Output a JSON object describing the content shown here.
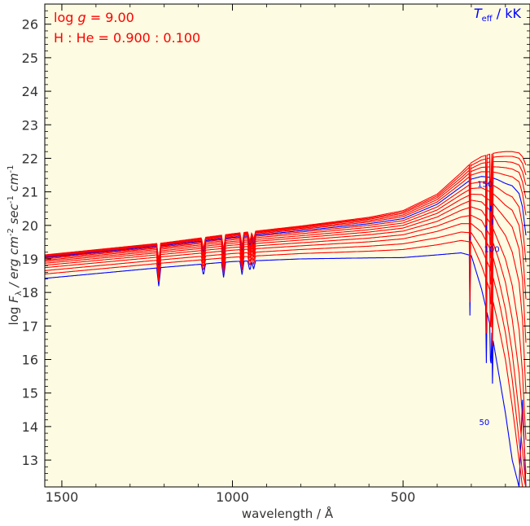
{
  "chart_data": {
    "type": "line",
    "title": "",
    "xlabel": "wavelength / Å",
    "ylabel": {
      "prefix": "log ",
      "symbol": "F",
      "subscript": "λ",
      "units": " / erg cm",
      "exp1": "-2",
      "sec": " sec",
      "exp2": "-1",
      "cm": " cm",
      "exp3": "-1"
    },
    "x_axis_note": "wavelength decreasing to the right",
    "xlim": [
      1550,
      128
    ],
    "ylim": [
      12.2,
      26.6
    ],
    "x_ticks": [
      {
        "value": 1500,
        "label": "1500"
      },
      {
        "value": 1000,
        "label": "1000"
      },
      {
        "value": 500,
        "label": "500"
      }
    ],
    "y_ticks": [
      13,
      14,
      15,
      16,
      17,
      18,
      19,
      20,
      21,
      22,
      23,
      24,
      25,
      26
    ],
    "annotations": {
      "logg_prefix": "log ",
      "logg_symbol": "g",
      "logg_value": " = 9.00",
      "composition": "H : He = 0.900 : 0.100",
      "teff_symbol": "T",
      "teff_sub": "eff",
      "teff_units": " / kK"
    },
    "curve_labels": [
      {
        "text": "150",
        "x": 260,
        "y": 21.15
      },
      {
        "text": "100",
        "x": 240,
        "y": 19.2
      },
      {
        "text": "50",
        "x": 262,
        "y": 14.05
      }
    ],
    "series": [
      {
        "teff_kK": 50,
        "highlight": true,
        "x": [
          1550,
          1200,
          1000,
          800,
          600,
          500,
          400,
          330,
          300,
          270,
          240,
          220,
          200,
          180,
          160,
          150,
          140
        ],
        "y": [
          18.42,
          18.75,
          18.92,
          19.0,
          19.03,
          19.04,
          19.12,
          19.18,
          19.1,
          18.1,
          16.8,
          15.6,
          14.4,
          13.0,
          12.2,
          14.8,
          12.2
        ]
      },
      {
        "teff_kK": 60,
        "highlight": false,
        "x": [
          1550,
          1200,
          1000,
          800,
          600,
          500,
          400,
          330,
          300,
          270,
          240,
          220,
          200,
          180,
          160,
          150,
          140
        ],
        "y": [
          18.55,
          18.88,
          19.05,
          19.16,
          19.23,
          19.28,
          19.42,
          19.55,
          19.5,
          18.8,
          17.9,
          17.0,
          16.0,
          14.6,
          13.0,
          12.2,
          12.2
        ]
      },
      {
        "teff_kK": 70,
        "highlight": false,
        "x": [
          1550,
          1200,
          1000,
          800,
          600,
          500,
          400,
          330,
          300,
          270,
          240,
          220,
          200,
          180,
          160,
          150,
          140
        ],
        "y": [
          18.65,
          18.98,
          19.16,
          19.28,
          19.38,
          19.45,
          19.63,
          19.8,
          19.78,
          19.3,
          18.6,
          17.8,
          16.8,
          15.4,
          13.6,
          12.6,
          12.2
        ]
      },
      {
        "teff_kK": 80,
        "highlight": false,
        "x": [
          1550,
          1200,
          1000,
          800,
          600,
          500,
          400,
          330,
          300,
          270,
          240,
          220,
          200,
          180,
          160,
          150,
          140
        ],
        "y": [
          18.74,
          19.07,
          19.26,
          19.39,
          19.51,
          19.6,
          19.82,
          20.05,
          20.05,
          19.8,
          19.2,
          18.4,
          17.5,
          16.2,
          14.4,
          13.3,
          12.2
        ]
      },
      {
        "teff_kK": 90,
        "highlight": false,
        "x": [
          1550,
          1200,
          1000,
          800,
          600,
          500,
          400,
          330,
          300,
          270,
          240,
          220,
          200,
          180,
          160,
          150,
          140
        ],
        "y": [
          18.81,
          19.14,
          19.34,
          19.48,
          19.62,
          19.72,
          19.98,
          20.25,
          20.3,
          20.15,
          19.6,
          19.0,
          18.3,
          17.2,
          15.6,
          14.3,
          12.6
        ]
      },
      {
        "teff_kK": 100,
        "highlight": false,
        "x": [
          1550,
          1200,
          1000,
          800,
          600,
          500,
          400,
          330,
          300,
          270,
          240,
          220,
          200,
          180,
          160,
          150,
          140
        ],
        "y": [
          18.87,
          19.2,
          19.41,
          19.56,
          19.72,
          19.83,
          20.12,
          20.45,
          20.55,
          20.45,
          20.0,
          19.5,
          19.0,
          18.2,
          16.9,
          15.6,
          13.6
        ]
      },
      {
        "teff_kK": 110,
        "highlight": false,
        "x": [
          1550,
          1200,
          1000,
          800,
          600,
          500,
          400,
          330,
          300,
          270,
          240,
          220,
          200,
          180,
          160,
          150,
          140
        ],
        "y": [
          18.92,
          19.25,
          19.47,
          19.63,
          19.8,
          19.92,
          20.25,
          20.62,
          20.75,
          20.7,
          20.4,
          20.0,
          19.7,
          19.2,
          18.3,
          17.2,
          15.0
        ]
      },
      {
        "teff_kK": 120,
        "highlight": false,
        "x": [
          1550,
          1200,
          1000,
          800,
          600,
          500,
          400,
          330,
          300,
          270,
          240,
          220,
          200,
          180,
          160,
          150,
          140
        ],
        "y": [
          18.96,
          19.3,
          19.52,
          19.69,
          19.87,
          20.0,
          20.36,
          20.78,
          20.93,
          20.92,
          20.7,
          20.45,
          20.2,
          19.95,
          19.3,
          18.4,
          16.5
        ]
      },
      {
        "teff_kK": 130,
        "highlight": false,
        "x": [
          1550,
          1200,
          1000,
          800,
          600,
          500,
          400,
          330,
          300,
          270,
          240,
          220,
          200,
          180,
          160,
          150,
          140
        ],
        "y": [
          19.0,
          19.34,
          19.57,
          19.75,
          19.94,
          20.07,
          20.46,
          20.92,
          21.1,
          21.12,
          20.98,
          20.8,
          20.6,
          20.45,
          20.0,
          19.3,
          17.8
        ]
      },
      {
        "teff_kK": 140,
        "highlight": false,
        "x": [
          1550,
          1200,
          1000,
          800,
          600,
          500,
          400,
          330,
          300,
          270,
          240,
          220,
          200,
          180,
          160,
          150,
          140
        ],
        "y": [
          19.03,
          19.37,
          19.61,
          19.8,
          20.0,
          20.14,
          20.55,
          21.04,
          21.25,
          21.3,
          21.22,
          21.1,
          20.95,
          20.85,
          20.55,
          20.0,
          18.9
        ]
      },
      {
        "teff_kK": 150,
        "highlight": true,
        "x": [
          1550,
          1200,
          1000,
          800,
          600,
          500,
          400,
          330,
          300,
          270,
          240,
          220,
          200,
          180,
          160,
          150,
          140
        ],
        "y": [
          19.05,
          19.4,
          19.64,
          19.84,
          20.05,
          20.2,
          20.63,
          21.15,
          21.38,
          21.46,
          21.43,
          21.35,
          21.25,
          21.18,
          20.95,
          20.55,
          19.7
        ]
      },
      {
        "teff_kK": 160,
        "highlight": false,
        "x": [
          1550,
          1200,
          1000,
          800,
          600,
          500,
          400,
          330,
          300,
          270,
          240,
          220,
          200,
          180,
          160,
          150,
          140
        ],
        "y": [
          19.07,
          19.42,
          19.67,
          19.88,
          20.1,
          20.26,
          20.7,
          21.25,
          21.5,
          21.6,
          21.6,
          21.56,
          21.5,
          21.45,
          21.3,
          20.95,
          20.3
        ]
      },
      {
        "teff_kK": 170,
        "highlight": false,
        "x": [
          1550,
          1200,
          1000,
          800,
          600,
          500,
          400,
          330,
          300,
          270,
          240,
          220,
          200,
          180,
          160,
          150,
          140
        ],
        "y": [
          19.09,
          19.44,
          19.7,
          19.91,
          20.14,
          20.31,
          20.77,
          21.34,
          21.61,
          21.73,
          21.75,
          21.74,
          21.72,
          21.68,
          21.58,
          21.3,
          20.8
        ]
      },
      {
        "teff_kK": 180,
        "highlight": false,
        "x": [
          1550,
          1200,
          1000,
          800,
          600,
          500,
          400,
          330,
          300,
          270,
          240,
          220,
          200,
          180,
          160,
          150,
          140
        ],
        "y": [
          19.1,
          19.46,
          19.72,
          19.94,
          20.18,
          20.36,
          20.83,
          21.42,
          21.7,
          21.85,
          21.9,
          21.9,
          21.9,
          21.88,
          21.8,
          21.6,
          21.2
        ]
      },
      {
        "teff_kK": 190,
        "highlight": false,
        "x": [
          1550,
          1200,
          1000,
          800,
          600,
          500,
          400,
          330,
          300,
          270,
          240,
          220,
          200,
          180,
          160,
          150,
          140
        ],
        "y": [
          19.11,
          19.47,
          19.74,
          19.96,
          20.21,
          20.4,
          20.88,
          21.5,
          21.79,
          21.95,
          22.03,
          22.05,
          22.06,
          22.06,
          22.0,
          21.85,
          21.5
        ]
      },
      {
        "teff_kK": 200,
        "highlight": false,
        "x": [
          1550,
          1200,
          1000,
          800,
          600,
          500,
          400,
          330,
          300,
          270,
          240,
          220,
          200,
          180,
          160,
          150,
          140
        ],
        "y": [
          19.12,
          19.48,
          19.75,
          19.98,
          20.24,
          20.44,
          20.93,
          21.57,
          21.87,
          22.05,
          22.14,
          22.18,
          22.2,
          22.2,
          22.16,
          22.05,
          21.8
        ]
      }
    ],
    "absorption_lines": [
      {
        "x": 1216,
        "depth": 0.55
      },
      {
        "x": 1026,
        "depth": 0.45
      },
      {
        "x": 972,
        "depth": 0.4
      },
      {
        "x": 949,
        "depth": 0.3
      },
      {
        "x": 938,
        "depth": 0.25
      },
      {
        "x": 1085,
        "depth": 0.35
      },
      {
        "x": 304,
        "depth": 1.8
      },
      {
        "x": 256,
        "depth": 1.6
      },
      {
        "x": 243,
        "depth": 2.0
      },
      {
        "x": 238,
        "depth": 1.4
      }
    ],
    "grid": false,
    "colors": {
      "background": "#fdfbe1",
      "series": "#ff0000",
      "highlight": "#0000ff",
      "axis": "#000000",
      "tick_label": "#333333",
      "annotation": "#ff0000",
      "teff_label": "#0000ff"
    }
  }
}
